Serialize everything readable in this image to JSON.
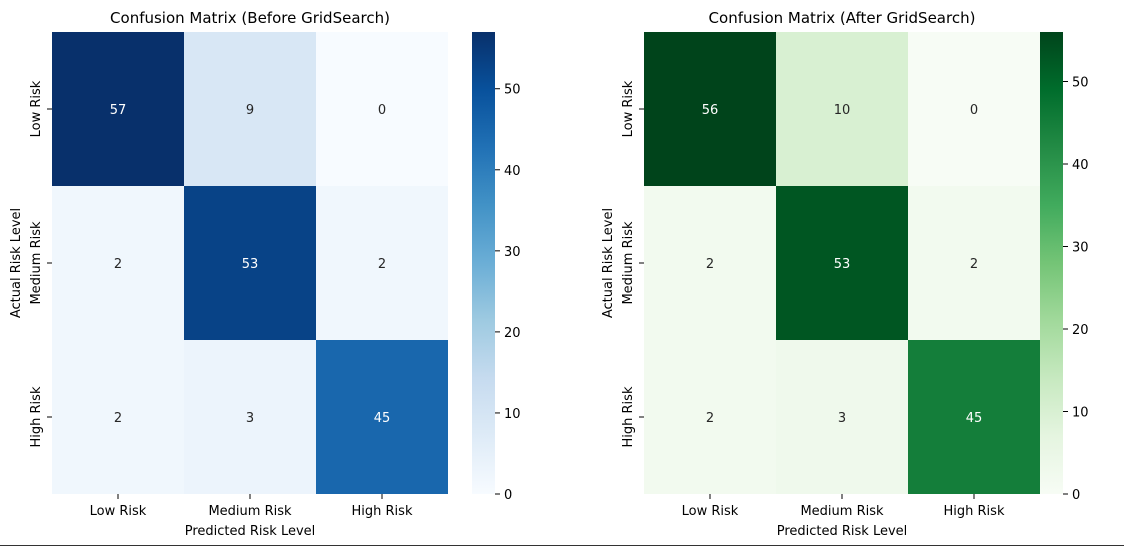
{
  "chart_data": [
    {
      "type": "heatmap",
      "title": "Confusion Matrix (Before GridSearch)",
      "xlabel": "Predicted Risk Level",
      "ylabel": "Actual Risk Level",
      "x_categories": [
        "Low Risk",
        "Medium Risk",
        "High Risk"
      ],
      "y_categories": [
        "Low Risk",
        "Medium Risk",
        "High Risk"
      ],
      "values": [
        [
          57,
          9,
          0
        ],
        [
          2,
          53,
          2
        ],
        [
          2,
          3,
          45
        ]
      ],
      "colormap": "Blues",
      "colors": {
        "low": "#f7fbff",
        "high": "#08306b"
      },
      "value_range": [
        0,
        57
      ],
      "colorbar_ticks": [
        0,
        10,
        20,
        30,
        40,
        50
      ],
      "colorbar_tick_labels": [
        "0",
        "10",
        "20",
        "30",
        "40",
        "50"
      ],
      "grid": false
    },
    {
      "type": "heatmap",
      "title": "Confusion Matrix (After GridSearch)",
      "xlabel": "Predicted Risk Level",
      "ylabel": "Actual Risk Level",
      "x_categories": [
        "Low Risk",
        "Medium Risk",
        "High Risk"
      ],
      "y_categories": [
        "Low Risk",
        "Medium Risk",
        "High Risk"
      ],
      "values": [
        [
          56,
          10,
          0
        ],
        [
          2,
          53,
          2
        ],
        [
          2,
          3,
          45
        ]
      ],
      "colormap": "Greens",
      "colors": {
        "low": "#f7fcf5",
        "high": "#00441b"
      },
      "value_range": [
        0,
        56
      ],
      "colorbar_ticks": [
        0,
        10,
        20,
        30,
        40,
        50
      ],
      "colorbar_tick_labels": [
        "0",
        "10",
        "20",
        "30",
        "40",
        "50"
      ],
      "grid": false
    }
  ]
}
